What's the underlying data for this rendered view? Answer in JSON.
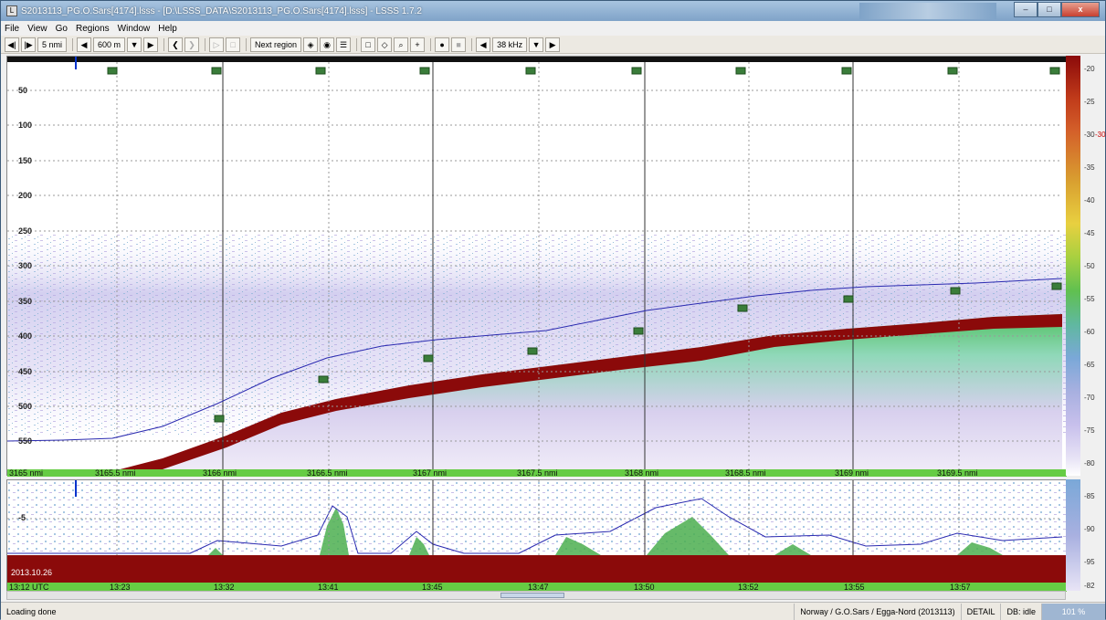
{
  "window": {
    "title": "S2013113_PG.O.Sars[4174].lsss - [D:\\LSSS_DATA\\S2013113_PG.O.Sars[4174].lsss] - LSSS 1.7.2",
    "app_icon": "lsss-app-icon",
    "controls": {
      "minimize": "–",
      "maximize": "□",
      "close": "x"
    }
  },
  "menu": [
    "File",
    "View",
    "Go",
    "Regions",
    "Window",
    "Help"
  ],
  "toolbar": {
    "first_label": "◀|",
    "next_label": "|▶",
    "distance_label": "5 nmi",
    "range_value": "600 m",
    "next_region_label": "Next region",
    "frequency_value": "38 kHz"
  },
  "echogram": {
    "depth_labels": [
      "50",
      "100",
      "150",
      "200",
      "250",
      "300",
      "350",
      "400",
      "450",
      "500",
      "550"
    ],
    "distance_labels": [
      "3165 nmi",
      "3165.5 nmi",
      "3166 nmi",
      "3166.5 nmi",
      "3167 nmi",
      "3167.5 nmi",
      "3168 nmi",
      "3168.5 nmi",
      "3169 nmi",
      "3169.5 nmi"
    ],
    "colorbar_labels": [
      "-20",
      "-25",
      "-30",
      "-35",
      "-40",
      "-45",
      "-50",
      "-55",
      "-60",
      "-65",
      "-70",
      "-75",
      "-80"
    ],
    "colorbar_marker": "-30"
  },
  "lower_panel": {
    "depth_labels": [
      "-5"
    ],
    "date": "2013.10.26",
    "start_time": "13:12 UTC",
    "time_labels": [
      "13:23",
      "13:32",
      "13:41",
      "13:45",
      "13:47",
      "13:50",
      "13:52",
      "13:55",
      "13:57"
    ],
    "colorbar_labels": [
      "-85",
      "-90",
      "-95"
    ],
    "colorbar_bottom": "-82"
  },
  "status": {
    "message": "Loading done",
    "cruise": "Norway / G.O.Sars / Egga-Nord (2013113)",
    "mode": "DETAIL",
    "db": "DB: idle",
    "zoom": "101 %"
  }
}
